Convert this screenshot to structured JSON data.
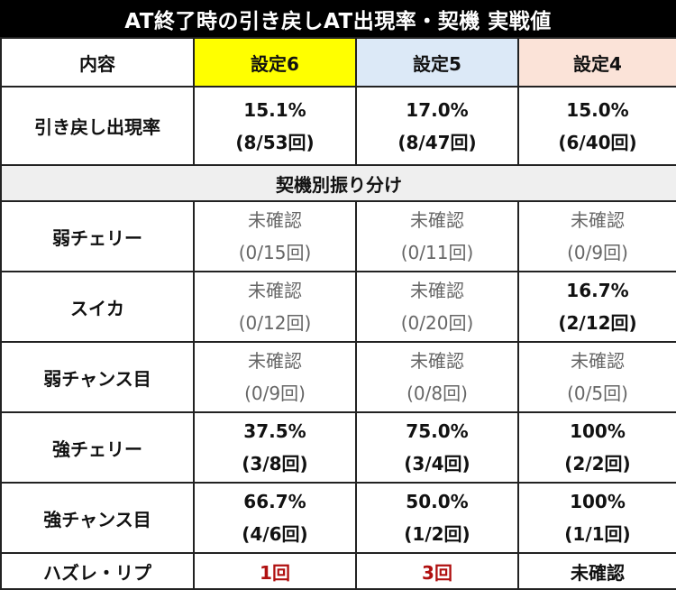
{
  "title": "AT終了時の引き戻しAT出現率・契機 実戦値",
  "colors": {
    "setting6_bg": "#ffff00",
    "setting5_bg": "#dce9f7",
    "setting4_bg": "#fbe3d8",
    "accent_red": "#b01010",
    "section_bg": "#efefef"
  },
  "header": {
    "content": "内容",
    "setting6": "設定6",
    "setting5": "設定5",
    "setting4": "設定4"
  },
  "rate_row": {
    "label": "引き戻し出現率",
    "s6": {
      "pct": "15.1%",
      "count": "(8/53回)"
    },
    "s5": {
      "pct": "17.0%",
      "count": "(8/47回)"
    },
    "s4": {
      "pct": "15.0%",
      "count": "(6/40回)"
    }
  },
  "section_title": "契機別振り分け",
  "rows": [
    {
      "label": "弱チェリー",
      "s6": {
        "pct": "未確認",
        "count": "(0/15回)"
      },
      "s5": {
        "pct": "未確認",
        "count": "(0/11回)"
      },
      "s4": {
        "pct": "未確認",
        "count": "(0/9回)"
      }
    },
    {
      "label": "スイカ",
      "s6": {
        "pct": "未確認",
        "count": "(0/12回)"
      },
      "s5": {
        "pct": "未確認",
        "count": "(0/20回)"
      },
      "s4": {
        "pct": "16.7%",
        "count": "(2/12回)"
      }
    },
    {
      "label": "弱チャンス目",
      "s6": {
        "pct": "未確認",
        "count": "(0/9回)"
      },
      "s5": {
        "pct": "未確認",
        "count": "(0/8回)"
      },
      "s4": {
        "pct": "未確認",
        "count": "(0/5回)"
      }
    },
    {
      "label": "強チェリー",
      "s6": {
        "pct": "37.5%",
        "count": "(3/8回)"
      },
      "s5": {
        "pct": "75.0%",
        "count": "(3/4回)"
      },
      "s4": {
        "pct": "100%",
        "count": "(2/2回)"
      }
    },
    {
      "label": "強チャンス目",
      "s6": {
        "pct": "66.7%",
        "count": "(4/6回)"
      },
      "s5": {
        "pct": "50.0%",
        "count": "(1/2回)"
      },
      "s4": {
        "pct": "100%",
        "count": "(1/1回)"
      }
    }
  ],
  "hazure_row": {
    "label": "ハズレ・リプ",
    "s6": "1回",
    "s5": "3回",
    "s4": "未確認"
  }
}
